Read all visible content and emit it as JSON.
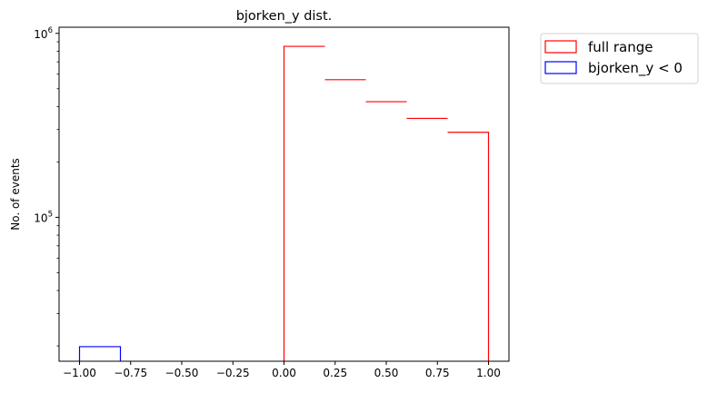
{
  "chart_data": {
    "type": "histogram",
    "title": "bjorken_y dist.",
    "xlabel": "",
    "ylabel": "No. of events",
    "xlim": [
      -1.1,
      1.1
    ],
    "ylim": [
      16500,
      1080000
    ],
    "yscale": "log",
    "x_ticks": [
      -1.0,
      -0.75,
      -0.5,
      -0.25,
      0.0,
      0.25,
      0.5,
      0.75,
      1.0
    ],
    "x_tick_labels": [
      "−1.00",
      "−0.75",
      "−0.50",
      "−0.25",
      "0.00",
      "0.25",
      "0.50",
      "0.75",
      "1.00"
    ],
    "y_major_ticks": [
      {
        "value": 100000,
        "base": "10",
        "exp": "5"
      },
      {
        "value": 1000000,
        "base": "10",
        "exp": "6"
      }
    ],
    "bin_edges": [
      -1.0,
      -0.8,
      -0.6,
      -0.4,
      -0.2,
      0.0,
      0.2,
      0.4,
      0.6,
      0.8,
      1.0
    ],
    "series": [
      {
        "name": "full range",
        "color": "#ff0000",
        "values": [
          0,
          0,
          0,
          0,
          0,
          850000,
          560000,
          425000,
          345000,
          290000
        ]
      },
      {
        "name": "bjorken_y < 0",
        "color": "#0000ff",
        "values": [
          19800,
          0,
          0,
          0,
          0,
          0,
          0,
          0,
          0,
          0
        ]
      }
    ],
    "legend_position": "outside upper right"
  }
}
